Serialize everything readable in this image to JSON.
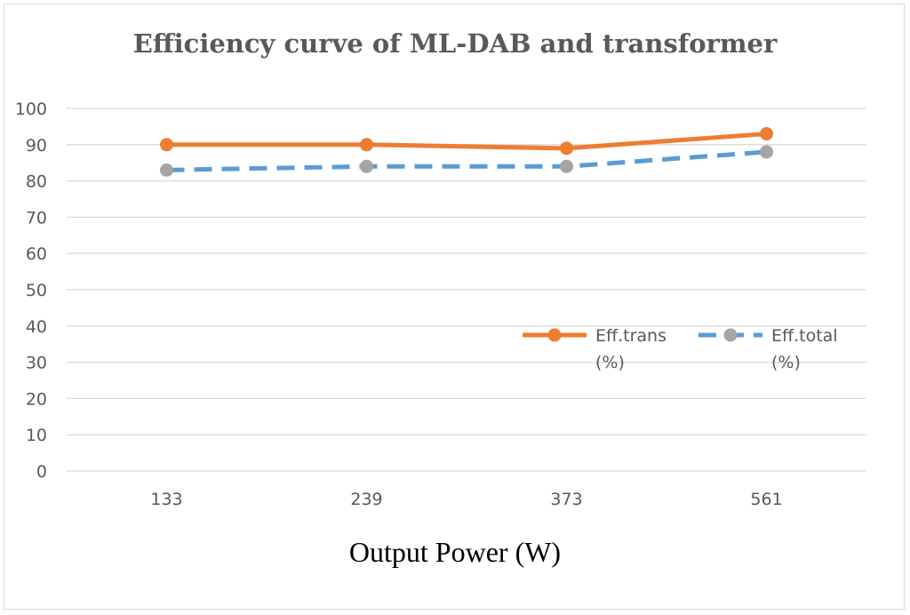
{
  "chart_data": {
    "type": "line",
    "title": "Efficiency curve of ML-DAB and transformer",
    "xlabel": "Output Power (W)",
    "ylabel": "",
    "categories": [
      "133",
      "239",
      "373",
      "561"
    ],
    "ylim": [
      0,
      100
    ],
    "yticks": [
      0,
      10,
      20,
      30,
      40,
      50,
      60,
      70,
      80,
      90,
      100
    ],
    "grid": true,
    "legend_position": "right-middle",
    "series": [
      {
        "name": "Eff.trans (%)",
        "legend_lines": [
          "Eff.trans",
          "(%)"
        ],
        "values": [
          90,
          90,
          89,
          93
        ],
        "line_color": "#ED7D31",
        "marker_color": "#ED7D31",
        "line_style": "solid"
      },
      {
        "name": "Eff.total (%)",
        "legend_lines": [
          "Eff.total",
          "(%)"
        ],
        "values": [
          83,
          84,
          84,
          88
        ],
        "line_color": "#5B9BD5",
        "marker_color": "#A5A5A5",
        "line_style": "dashed"
      }
    ]
  }
}
